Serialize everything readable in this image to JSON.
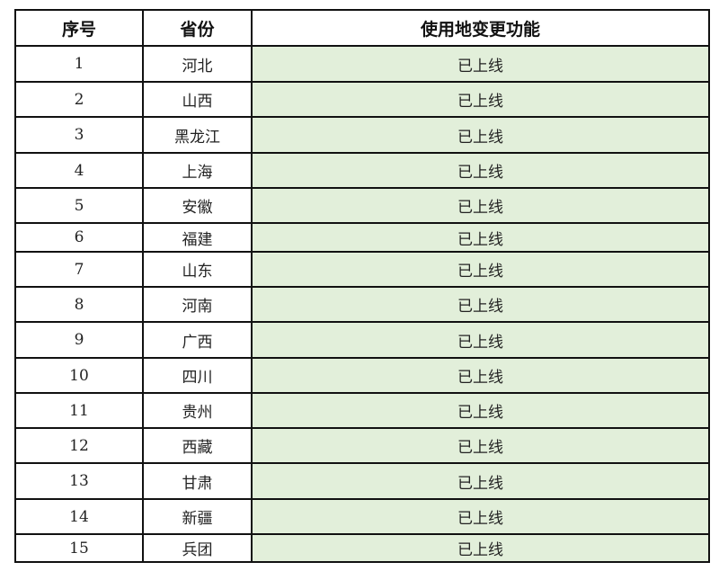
{
  "table": {
    "headers": [
      "序号",
      "省份",
      "使用地变更功能"
    ],
    "rows": [
      {
        "no": "1",
        "province": "河北",
        "status": "已上线"
      },
      {
        "no": "2",
        "province": "山西",
        "status": "已上线"
      },
      {
        "no": "3",
        "province": "黑龙江",
        "status": "已上线"
      },
      {
        "no": "4",
        "province": "上海",
        "status": "已上线"
      },
      {
        "no": "5",
        "province": "安徽",
        "status": "已上线"
      },
      {
        "no": "6",
        "province": "福建",
        "status": "已上线"
      },
      {
        "no": "7",
        "province": "山东",
        "status": "已上线"
      },
      {
        "no": "8",
        "province": "河南",
        "status": "已上线"
      },
      {
        "no": "9",
        "province": "广西",
        "status": "已上线"
      },
      {
        "no": "10",
        "province": "四川",
        "status": "已上线"
      },
      {
        "no": "11",
        "province": "贵州",
        "status": "已上线"
      },
      {
        "no": "12",
        "province": "西藏",
        "status": "已上线"
      },
      {
        "no": "13",
        "province": "甘肃",
        "status": "已上线"
      },
      {
        "no": "14",
        "province": "新疆",
        "status": "已上线"
      },
      {
        "no": "15",
        "province": "兵团",
        "status": "已上线"
      }
    ],
    "status_fill_color": "#e2efda"
  }
}
